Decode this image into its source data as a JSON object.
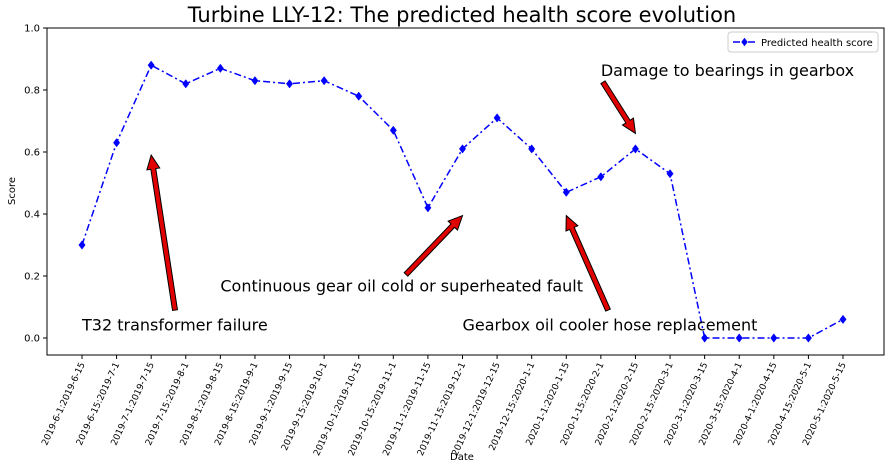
{
  "chart_data": {
    "type": "line",
    "title": "Turbine LLY-12: The predicted health score evolution",
    "xlabel": "Date",
    "ylabel": "Score",
    "ylim": [
      0.0,
      1.0
    ],
    "yticks": [
      "0.0",
      "0.2",
      "0.4",
      "0.6",
      "0.8",
      "1.0"
    ],
    "grid": false,
    "legend_position": "top-right",
    "categories": [
      "2019-6-1:2019-6-15",
      "2019-6-15:2019-7-1",
      "2019-7-1:2019-7-15",
      "2019-7-15:2019-8-1",
      "2019-8-1:2019-8-15",
      "2019-8-15:2019-9-1",
      "2019-9-1:2019-9-15",
      "2019-9-15:2019-10-1",
      "2019-10-1:2019-10-15",
      "2019-10-15:2019-11-1",
      "2019-11-1:2019-11-15",
      "2019-11-15:2019-12-1",
      "2019-12-1:2019-12-15",
      "2019-12-15:2020-1-1",
      "2020-1-1:2020-1-15",
      "2020-1-15:2020-2-1",
      "2020-2-1:2020-2-15",
      "2020-2-15:2020-3-1",
      "2020-3-1:2020-3-15",
      "2020-3-15:2020-4-1",
      "2020-4-1:2020-4-15",
      "2020-4-15:2020-5-1",
      "2020-5-1:2020-5-15"
    ],
    "series": [
      {
        "name": "Predicted health score",
        "color": "#0000ff",
        "marker": "diamond",
        "linestyle": "dashdot",
        "values": [
          0.3,
          0.63,
          0.88,
          0.82,
          0.87,
          0.83,
          0.82,
          0.83,
          0.78,
          0.67,
          0.42,
          0.61,
          0.71,
          0.61,
          0.47,
          0.52,
          0.61,
          0.53,
          0.0,
          0.0,
          0.0,
          0.0,
          0.06
        ]
      }
    ],
    "annotations": [
      {
        "text": "T32 transformer failure",
        "text_x": 0.0,
        "text_y": 0.025,
        "arrow_x": 2.0,
        "arrow_y": 0.59
      },
      {
        "text": "Continuous gear oil cold or superheated fault",
        "text_x": 4.0,
        "text_y": 0.15,
        "arrow_x": 11.0,
        "arrow_y": 0.395
      },
      {
        "text": "Gearbox oil cooler hose replacement",
        "text_x": 11.0,
        "text_y": 0.025,
        "arrow_x": 14.0,
        "arrow_y": 0.395
      },
      {
        "text": "Damage to bearings in gearbox",
        "text_x": 15.0,
        "text_y": 0.845,
        "arrow_x": 16.0,
        "arrow_y": 0.66
      }
    ],
    "arrow_color": "#e00000"
  }
}
